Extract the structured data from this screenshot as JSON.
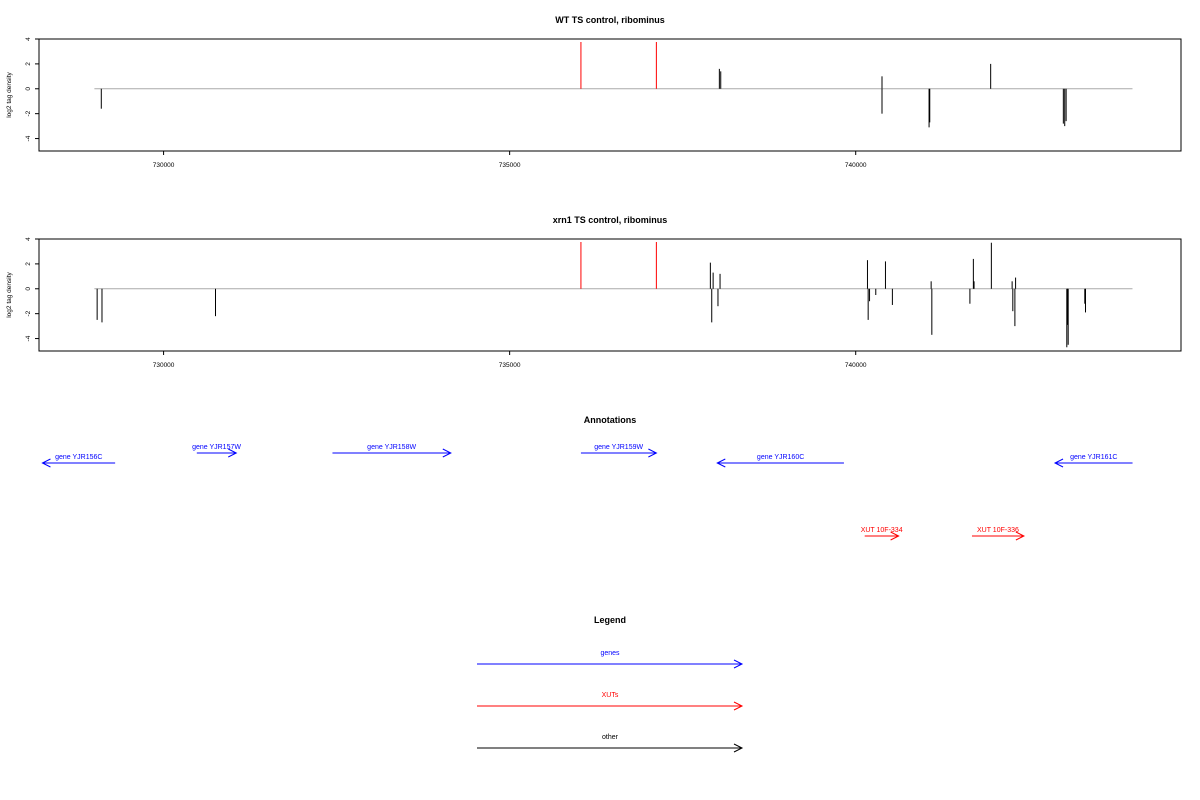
{
  "colors": {
    "gene": "#0000ff",
    "xut": "#ff0000",
    "other": "#000000",
    "baseline": "#aaaaaa",
    "highlight": "#ff0000",
    "signal": "#000000"
  },
  "chart_data": [
    {
      "type": "bar",
      "title": "WT TS control, ribominus",
      "ylabel": "log2 tag density",
      "xlim": [
        728200,
        744700
      ],
      "ylim": [
        -5,
        4
      ],
      "xticks": [
        730000,
        735000,
        740000
      ],
      "xtick_labels": [
        "730000",
        "735000",
        "740000"
      ],
      "yticks": [
        4,
        2,
        0,
        -2,
        -4
      ],
      "ytick_labels": [
        "4",
        "2",
        "0",
        "-2",
        "-4"
      ],
      "baseline": [
        729000,
        743999
      ],
      "highlight_lines": [
        736030,
        737120
      ],
      "signal": [
        {
          "x": 729100,
          "y": -1.6
        },
        {
          "x": 738030,
          "y": 1.6
        },
        {
          "x": 738050,
          "y": 1.4
        },
        {
          "x": 740380,
          "y": 1.0
        },
        {
          "x": 740380,
          "y": -2.0
        },
        {
          "x": 741060,
          "y": -3.1
        },
        {
          "x": 741070,
          "y": -2.7
        },
        {
          "x": 741950,
          "y": 2.0
        },
        {
          "x": 743000,
          "y": -2.8
        },
        {
          "x": 743020,
          "y": -3.0
        },
        {
          "x": 743040,
          "y": -2.6
        }
      ]
    },
    {
      "type": "bar",
      "title": "xrn1 TS control, ribominus",
      "ylabel": "log2 tag density",
      "xlim": [
        728200,
        744700
      ],
      "ylim": [
        -5,
        4
      ],
      "xticks": [
        730000,
        735000,
        740000
      ],
      "xtick_labels": [
        "730000",
        "735000",
        "740000"
      ],
      "yticks": [
        4,
        2,
        0,
        -2,
        -4
      ],
      "ytick_labels": [
        "4",
        "2",
        "0",
        "-2",
        "-4"
      ],
      "baseline": [
        729000,
        743999
      ],
      "highlight_lines": [
        736030,
        737120
      ],
      "signal": [
        {
          "x": 729040,
          "y": -2.5
        },
        {
          "x": 729110,
          "y": -2.7
        },
        {
          "x": 730750,
          "y": -2.2
        },
        {
          "x": 737900,
          "y": 2.1
        },
        {
          "x": 737920,
          "y": -2.7
        },
        {
          "x": 737940,
          "y": 1.3
        },
        {
          "x": 738010,
          "y": -1.4
        },
        {
          "x": 738040,
          "y": 1.2
        },
        {
          "x": 740170,
          "y": 2.3
        },
        {
          "x": 740180,
          "y": -2.5
        },
        {
          "x": 740200,
          "y": -1.0
        },
        {
          "x": 740290,
          "y": -0.5
        },
        {
          "x": 740430,
          "y": 2.2
        },
        {
          "x": 740530,
          "y": -1.3
        },
        {
          "x": 741090,
          "y": 0.6
        },
        {
          "x": 741100,
          "y": -3.7
        },
        {
          "x": 741650,
          "y": -1.2
        },
        {
          "x": 741700,
          "y": 2.4
        },
        {
          "x": 741710,
          "y": 0.6
        },
        {
          "x": 741960,
          "y": 3.7
        },
        {
          "x": 742260,
          "y": 0.6
        },
        {
          "x": 742270,
          "y": -1.8
        },
        {
          "x": 742300,
          "y": -3.0
        },
        {
          "x": 742310,
          "y": 0.9
        },
        {
          "x": 743050,
          "y": -4.7
        },
        {
          "x": 743060,
          "y": -2.9
        },
        {
          "x": 743070,
          "y": -4.5
        },
        {
          "x": 743310,
          "y": -1.2
        },
        {
          "x": 743320,
          "y": -1.9
        }
      ]
    }
  ],
  "annotations": {
    "title": "Annotations",
    "items": [
      {
        "label": "gene YJR156C",
        "type": "gene",
        "strand": "-",
        "start": 728250,
        "end": 729300,
        "row": 1
      },
      {
        "label": "gene YJR157W",
        "type": "gene",
        "strand": "+",
        "start": 730480,
        "end": 731050,
        "row": 0
      },
      {
        "label": "gene YJR158W",
        "type": "gene",
        "strand": "+",
        "start": 732440,
        "end": 734150,
        "row": 0
      },
      {
        "label": "gene YJR159W",
        "type": "gene",
        "strand": "+",
        "start": 736030,
        "end": 737120,
        "row": 0
      },
      {
        "label": "gene YJR160C",
        "type": "gene",
        "strand": "-",
        "start": 738000,
        "end": 739830,
        "row": 1
      },
      {
        "label": "gene YJR161C",
        "type": "gene",
        "strand": "-",
        "start": 742880,
        "end": 744000,
        "row": 1
      },
      {
        "label": "XUT 10F-334",
        "type": "xut",
        "strand": "+",
        "start": 740130,
        "end": 740620,
        "row": 2
      },
      {
        "label": "XUT 10F-336",
        "type": "xut",
        "strand": "+",
        "start": 741680,
        "end": 742430,
        "row": 2
      }
    ]
  },
  "legend": {
    "title": "Legend",
    "items": [
      {
        "label": "genes",
        "type": "gene"
      },
      {
        "label": "XUTs",
        "type": "xut"
      },
      {
        "label": "other",
        "type": "other"
      }
    ]
  }
}
